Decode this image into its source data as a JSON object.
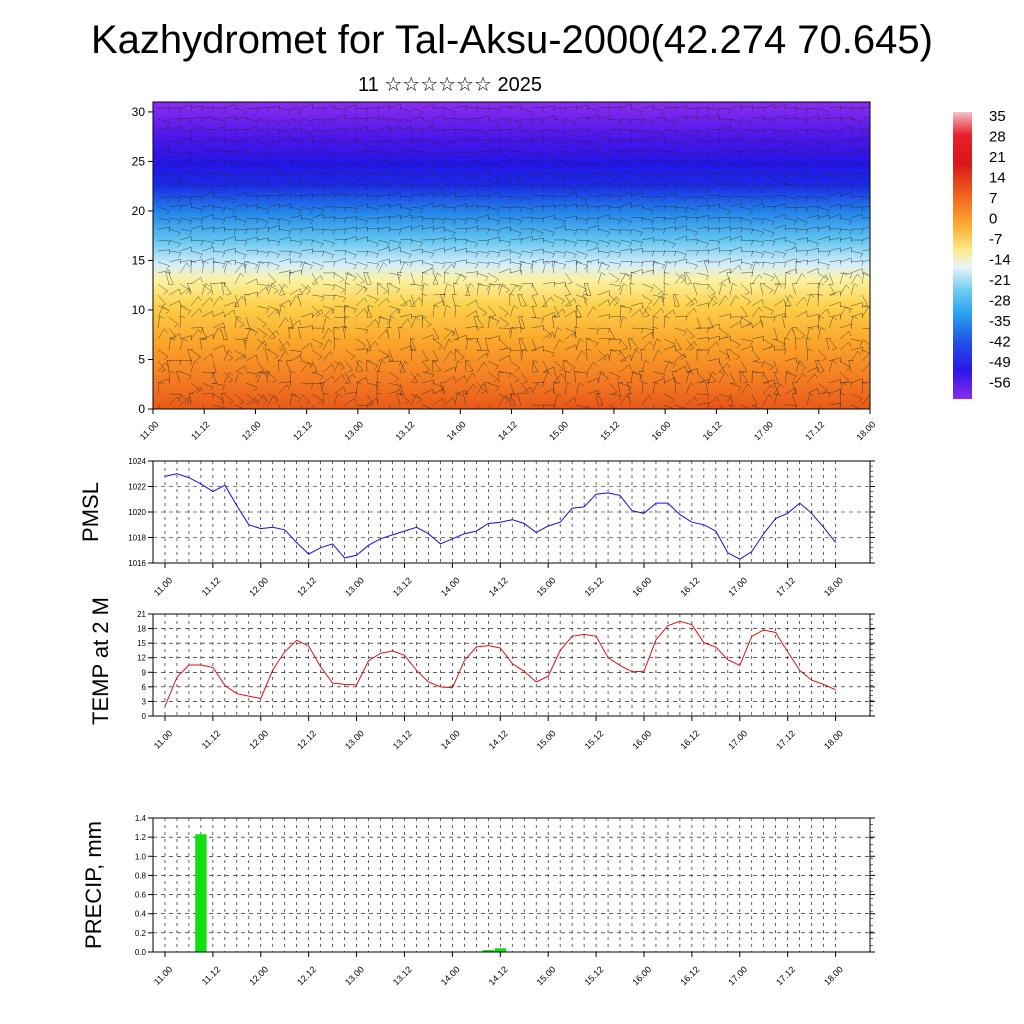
{
  "header": {
    "title": "Kazhydromet for Tal-Aksu-2000(42.274 70.645)",
    "subtitle": "11 ☆☆☆☆☆☆ 2025"
  },
  "colors": {
    "pmsl_line": "#1010e0",
    "temp_line": "#e01010",
    "precip_bar": "#10e010"
  },
  "chart_data": [
    {
      "type": "heatmap",
      "name_hint": "vertical cross-section of temperature with wind barbs",
      "title": "",
      "xlabel": "",
      "ylabel": "",
      "x_tick_labels": [
        "11.00",
        "11.12",
        "12.00",
        "12.12",
        "13.00",
        "13.12",
        "14.00",
        "14.12",
        "15.00",
        "15.12",
        "16.00",
        "16.12",
        "17.00",
        "17.12",
        "18.00"
      ],
      "y_ticks": [
        0,
        5,
        10,
        15,
        20,
        25,
        30
      ],
      "ylim": [
        0,
        31
      ],
      "colorbar_labels": [
        "35",
        "28",
        "21",
        "14",
        "7",
        "0",
        "-7",
        "-14",
        "-21",
        "-28",
        "-35",
        "-42",
        "-49",
        "-56"
      ],
      "colorbar_range": [
        -60,
        38
      ],
      "grid": false
    },
    {
      "type": "line",
      "ylabel": "PMSL",
      "x_tick_labels": [
        "11.00",
        "11.12",
        "12.00",
        "12.12",
        "13.00",
        "13.12",
        "14.00",
        "14.12",
        "15.00",
        "15.12",
        "16.00",
        "16.12",
        "17.00",
        "17.12",
        "18.00"
      ],
      "y_ticks": [
        "1016",
        "1018",
        "1020",
        "1022",
        "1024"
      ],
      "ylim": [
        1016,
        1024
      ],
      "xlim": [
        -0.125,
        7
      ],
      "grid": true,
      "series": [
        {
          "x": [
            0,
            0.125,
            0.25,
            0.375,
            0.5,
            0.625,
            0.75,
            0.875,
            1,
            1.125,
            1.25,
            1.375,
            1.5,
            1.625,
            1.75,
            1.875,
            2,
            2.125,
            2.25,
            2.375,
            2.5,
            2.625,
            2.75,
            2.875,
            3,
            3.125,
            3.25,
            3.375,
            3.5,
            3.625,
            3.75,
            3.875,
            4,
            4.125,
            4.25,
            4.375,
            4.5,
            4.625,
            4.75,
            4.875,
            5,
            5.125,
            5.25,
            5.375,
            5.5,
            5.625,
            5.75,
            5.875,
            6,
            6.125,
            6.25,
            6.375,
            6.5,
            6.625,
            6.75,
            6.875,
            7
          ],
          "values": [
            1022.8,
            1023,
            1022.7,
            1022.2,
            1021.6,
            1022.1,
            1020.5,
            1019,
            1018.7,
            1018.8,
            1018.6,
            1017.6,
            1016.7,
            1017.2,
            1017.5,
            1016.4,
            1016.6,
            1017.4,
            1017.9,
            1018.2,
            1018.5,
            1018.8,
            1018.3,
            1017.5,
            1017.9,
            1018.3,
            1018.5,
            1019.1,
            1019.2,
            1019.4,
            1019.1,
            1018.4,
            1018.9,
            1019.2,
            1020.3,
            1020.4,
            1021.4,
            1021.5,
            1021.3,
            1020.1,
            1019.9,
            1020.7,
            1020.7,
            1019.8,
            1019.2,
            1019,
            1018.5,
            1016.8,
            1016.3,
            1016.9,
            1018.3,
            1019.5,
            1019.9,
            1020.7,
            1019.9,
            1018.8,
            1017.6
          ]
        }
      ]
    },
    {
      "type": "line",
      "ylabel": "TEMP at 2 M",
      "x_tick_labels": [
        "11.00",
        "11.12",
        "12.00",
        "12.12",
        "13.00",
        "13.12",
        "14.00",
        "14.12",
        "15.00",
        "15.12",
        "16.00",
        "16.12",
        "17.00",
        "17.12",
        "18.00"
      ],
      "y_ticks": [
        "0",
        "3",
        "6",
        "9",
        "12",
        "15",
        "18",
        "21"
      ],
      "ylim": [
        0,
        21
      ],
      "xlim": [
        -0.125,
        7
      ],
      "grid": true,
      "series": [
        {
          "x": [
            0,
            0.125,
            0.25,
            0.375,
            0.5,
            0.625,
            0.75,
            0.875,
            1,
            1.125,
            1.25,
            1.375,
            1.5,
            1.625,
            1.75,
            1.875,
            2,
            2.125,
            2.25,
            2.375,
            2.5,
            2.625,
            2.75,
            2.875,
            3,
            3.125,
            3.25,
            3.375,
            3.5,
            3.625,
            3.75,
            3.875,
            4,
            4.125,
            4.25,
            4.375,
            4.5,
            4.625,
            4.75,
            4.875,
            5,
            5.125,
            5.25,
            5.375,
            5.5,
            5.625,
            5.75,
            5.875,
            6,
            6.125,
            6.25,
            6.375,
            6.5,
            6.625,
            6.75,
            6.875,
            7
          ],
          "values": [
            2,
            8,
            10.5,
            10.5,
            10,
            6.3,
            4.6,
            4.1,
            3.6,
            9.5,
            13.2,
            15.6,
            14.4,
            10.1,
            6.8,
            6.5,
            6.4,
            11.4,
            12.9,
            13.4,
            12.5,
            9.4,
            7,
            6,
            5.8,
            11.4,
            14.2,
            14.5,
            14,
            10.8,
            9.2,
            7,
            8.2,
            13.5,
            16.4,
            16.8,
            16.4,
            12,
            10.4,
            9.1,
            9.2,
            15.7,
            18.6,
            19.5,
            18.8,
            15.1,
            14.2,
            11.6,
            10.4,
            16.4,
            17.7,
            17.2,
            13.2,
            9.4,
            7.4,
            6.5,
            5.4
          ]
        }
      ]
    },
    {
      "type": "bar",
      "ylabel": "PRECIP, mm",
      "x_tick_labels": [
        "11.00",
        "11.12",
        "12.00",
        "12.12",
        "13.00",
        "13.12",
        "14.00",
        "14.12",
        "15.00",
        "15.12",
        "16.00",
        "16.12",
        "17.00",
        "17.12",
        "18.00"
      ],
      "y_ticks": [
        "0.0",
        "0.2",
        "0.4",
        "0.6",
        "0.8",
        "1.0",
        "1.2",
        "1.4"
      ],
      "ylim": [
        0,
        1.4
      ],
      "xlim": [
        -0.125,
        7
      ],
      "grid": true,
      "bars": [
        {
          "x": 0.375,
          "value": 1.23
        },
        {
          "x": 3.375,
          "value": 0.02
        },
        {
          "x": 3.5,
          "value": 0.04
        }
      ]
    }
  ]
}
